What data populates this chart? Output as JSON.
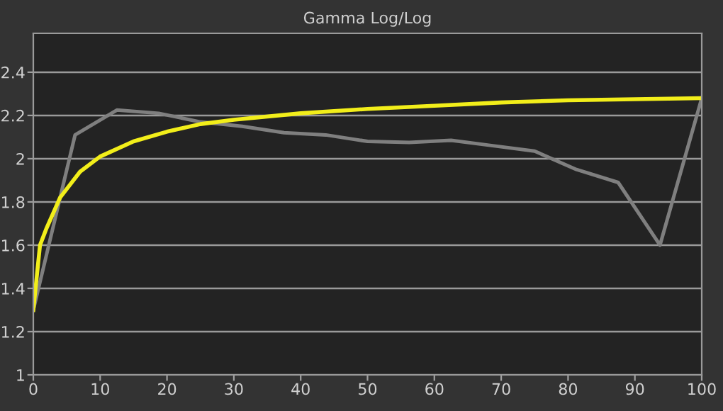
{
  "chart_data": {
    "type": "line",
    "title": "Gamma Log/Log",
    "xlim": [
      0,
      100
    ],
    "ylim": [
      1,
      2.58
    ],
    "xticks": [
      0,
      10,
      20,
      30,
      40,
      50,
      60,
      70,
      80,
      90,
      100
    ],
    "yticks": [
      1,
      1.2,
      1.4,
      1.6,
      1.8,
      2,
      2.2,
      2.4
    ],
    "grid": "y",
    "marker": "none",
    "line_style": "solid",
    "series": [
      {
        "color": "#7f7f7f",
        "x": [
          0,
          6.25,
          12.5,
          18.75,
          25,
          31.25,
          37.5,
          43.75,
          50,
          56.25,
          62.5,
          68.75,
          75,
          81.25,
          87.5,
          93.75,
          100
        ],
        "values": [
          1.3,
          2.11,
          2.225,
          2.21,
          2.17,
          2.15,
          2.12,
          2.11,
          2.08,
          2.075,
          2.085,
          2.06,
          2.035,
          1.95,
          1.89,
          1.6,
          2.28
        ]
      },
      {
        "color": "#f2ee1a",
        "x": [
          0,
          1,
          2,
          4,
          7,
          10,
          15,
          20,
          25,
          30,
          40,
          50,
          60,
          70,
          80,
          90,
          100
        ],
        "values": [
          1.3,
          1.6,
          1.68,
          1.82,
          1.94,
          2.01,
          2.08,
          2.125,
          2.16,
          2.18,
          2.21,
          2.23,
          2.245,
          2.26,
          2.27,
          2.275,
          2.28
        ]
      }
    ]
  }
}
